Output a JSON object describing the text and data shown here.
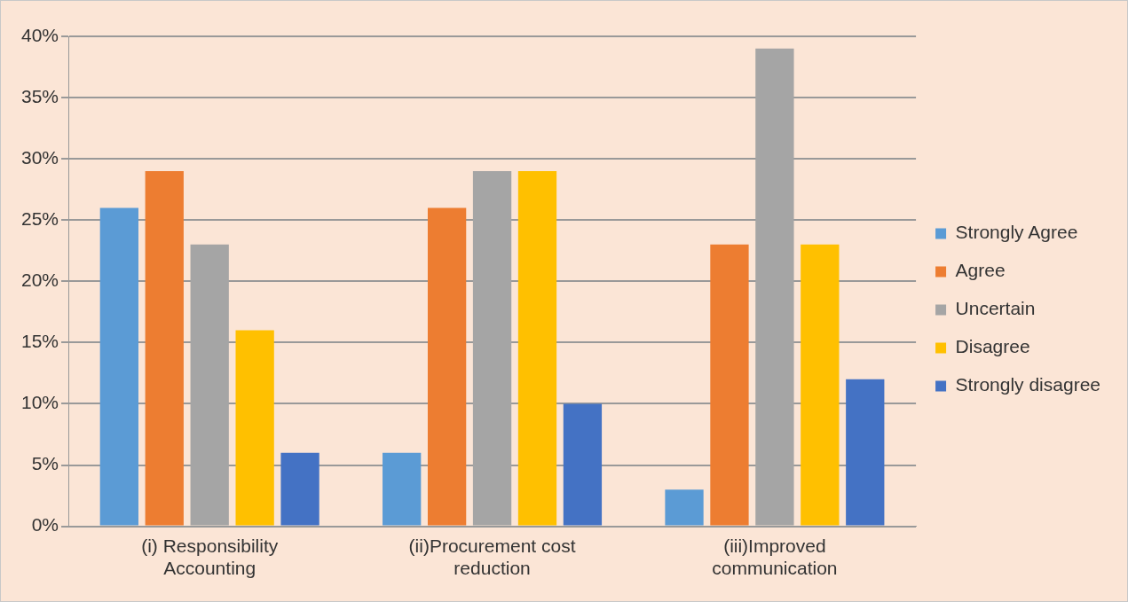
{
  "chart_data": {
    "type": "bar",
    "categories": [
      "(i) Responsibility Accounting",
      "(ii)Procurement cost reduction",
      "(iii)Improved communication"
    ],
    "series": [
      {
        "name": "Strongly Agree",
        "color": "#5b9bd5",
        "values": [
          26,
          6,
          3
        ]
      },
      {
        "name": "Agree",
        "color": "#ed7d31",
        "values": [
          29,
          26,
          23
        ]
      },
      {
        "name": "Uncertain",
        "color": "#a5a5a5",
        "values": [
          23,
          29,
          39
        ]
      },
      {
        "name": "Disagree",
        "color": "#ffc000",
        "values": [
          16,
          29,
          23
        ]
      },
      {
        "name": "Strongly disagree",
        "color": "#4472c4",
        "values": [
          6,
          10,
          12
        ]
      }
    ],
    "ylim": [
      0,
      40
    ],
    "yticks": [
      {
        "value": 0,
        "label": "0%"
      },
      {
        "value": 5,
        "label": "5%"
      },
      {
        "value": 10,
        "label": "10%"
      },
      {
        "value": 15,
        "label": "15%"
      },
      {
        "value": 20,
        "label": "20%"
      },
      {
        "value": 25,
        "label": "25%"
      },
      {
        "value": 30,
        "label": "30%"
      },
      {
        "value": 35,
        "label": "35%"
      },
      {
        "value": 40,
        "label": "40%"
      }
    ],
    "grid": "y",
    "legend": "right"
  }
}
